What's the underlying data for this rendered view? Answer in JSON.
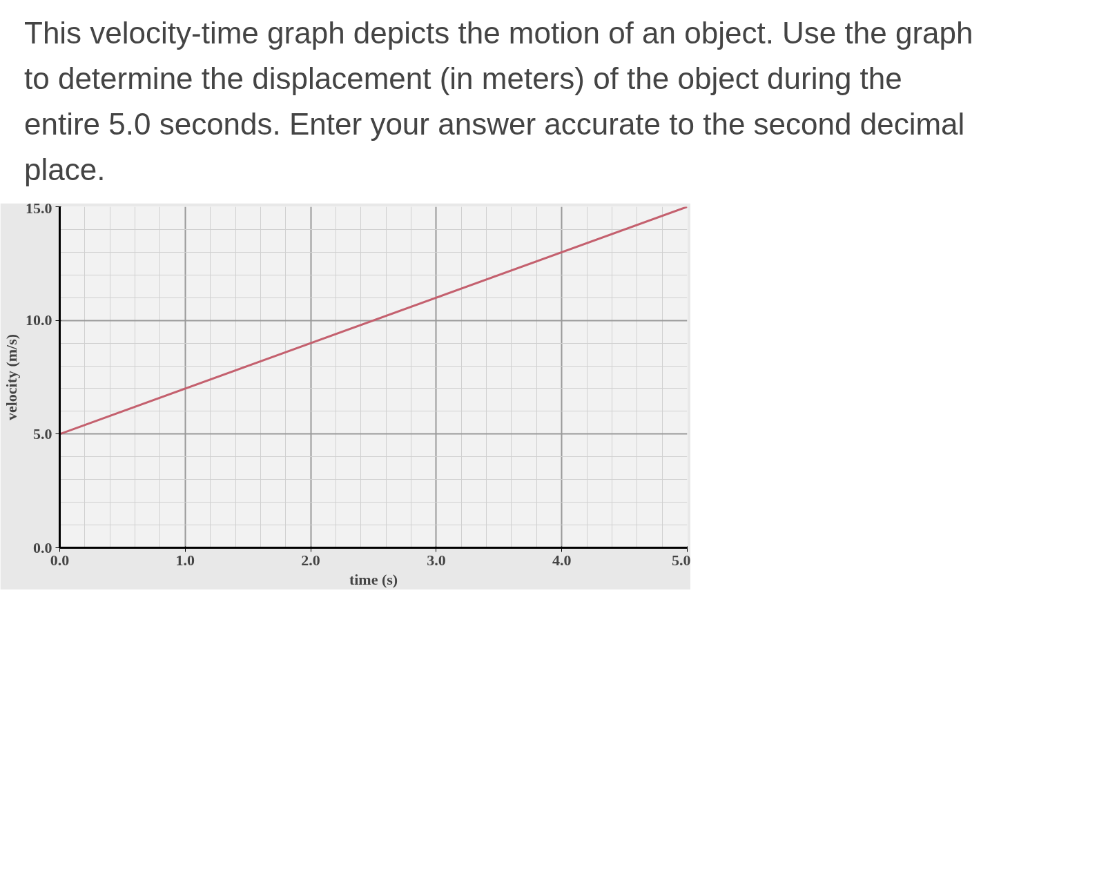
{
  "chart_data": {
    "type": "line",
    "title": "This velocity-time graph depicts the motion of an object. Use the graph to determine the displacement (in meters) of the object during the entire 5.0 seconds. Enter your answer accurate to the second decimal place.",
    "xlabel": "time (s)",
    "ylabel": "velocity (m/s)",
    "x": [
      0,
      5
    ],
    "series": [
      {
        "color": "#c4606e",
        "values": [
          5,
          15
        ]
      }
    ],
    "xlim": [
      0,
      5
    ],
    "ylim": [
      0,
      15
    ],
    "xticks": [
      {
        "value": 0,
        "label": "0.0"
      },
      {
        "value": 1,
        "label": "1.0"
      },
      {
        "value": 2,
        "label": "2.0"
      },
      {
        "value": 3,
        "label": "3.0"
      },
      {
        "value": 4,
        "label": "4.0"
      },
      {
        "value": 5,
        "label": "5.0"
      }
    ],
    "yticks": [
      {
        "value": 0,
        "label": "0.0"
      },
      {
        "value": 5,
        "label": "5.0"
      },
      {
        "value": 10,
        "label": "10.0"
      },
      {
        "value": 15,
        "label": "15.0"
      }
    ],
    "grid": true,
    "marker": "none",
    "line_style": "solid"
  }
}
